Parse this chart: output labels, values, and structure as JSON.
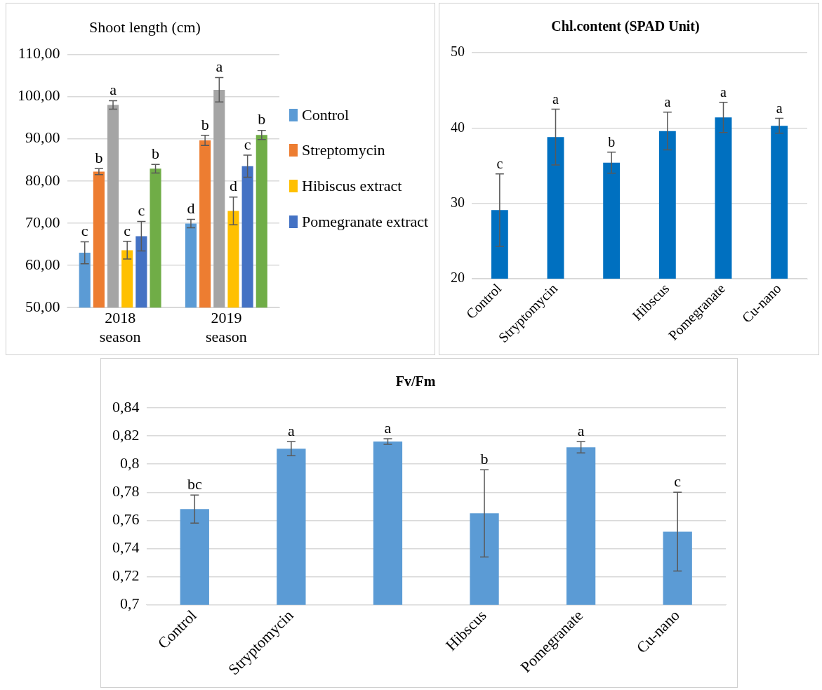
{
  "chart_data": [
    {
      "type": "bar",
      "title": "Shoot length (cm)",
      "categories": [
        "2018 season",
        "2019 season"
      ],
      "series": [
        {
          "name": "Control",
          "color": "#5b9bd5",
          "values": [
            63.0,
            69.9
          ],
          "errors": [
            2.6,
            1.0
          ],
          "value_labels": [
            "c",
            "d"
          ]
        },
        {
          "name": "Streptomycin",
          "color": "#ed7d31",
          "values": [
            82.2,
            89.6
          ],
          "errors": [
            0.7,
            1.2
          ],
          "value_labels": [
            "b",
            "b"
          ]
        },
        {
          "color": "#a5a5a5",
          "values": [
            98.0,
            101.6
          ],
          "errors": [
            1.0,
            2.9
          ],
          "value_labels": [
            "a",
            "a"
          ]
        },
        {
          "name": "Hibiscus extract",
          "color": "#ffc000",
          "values": [
            63.6,
            72.9
          ],
          "errors": [
            2.1,
            3.3
          ],
          "value_labels": [
            "c",
            "d"
          ]
        },
        {
          "name": "Pomegranate extract",
          "color": "#4472c4",
          "values": [
            66.9,
            83.5
          ],
          "errors": [
            3.5,
            2.6
          ],
          "value_labels": [
            "c",
            "c"
          ]
        },
        {
          "color": "#70ad47",
          "values": [
            82.9,
            90.9
          ],
          "errors": [
            1.0,
            1.1
          ],
          "value_labels": [
            "b",
            "b"
          ]
        }
      ],
      "ylim": [
        50,
        110
      ],
      "yticks": [
        {
          "value": 50,
          "label": "50,00"
        },
        {
          "value": 60,
          "label": "60,00"
        },
        {
          "value": 70,
          "label": "70,00"
        },
        {
          "value": 80,
          "label": "80,00"
        },
        {
          "value": 90,
          "label": "90,00"
        },
        {
          "value": 100,
          "label": "100,00"
        },
        {
          "value": 110,
          "label": "110,00"
        }
      ],
      "grid": "y",
      "legend": "right"
    },
    {
      "type": "bar",
      "title": "Chl.content (SPAD Unit)",
      "categories": [
        "Control",
        "Stryptomycin",
        null,
        "Hibscus",
        "Pomegranate",
        "Cu-nano"
      ],
      "series": [
        {
          "color": "#0070c0",
          "values": [
            29.1,
            38.8,
            35.4,
            39.6,
            41.4,
            40.3
          ],
          "errors": [
            4.8,
            3.7,
            1.4,
            2.5,
            2.0,
            1.0
          ],
          "value_labels": [
            "c",
            "a",
            "b",
            "a",
            "a",
            "a"
          ]
        }
      ],
      "ylim": [
        20,
        50
      ],
      "yticks": [
        20,
        30,
        40,
        50
      ],
      "grid": "y",
      "legend": false
    },
    {
      "type": "bar",
      "title": "Fv/Fm",
      "categories": [
        "Control",
        "Stryptomycin",
        null,
        "Hibscus",
        "Pomegranate",
        "Cu-nano"
      ],
      "series": [
        {
          "color": "#5b9bd5",
          "values": [
            0.768,
            0.811,
            0.816,
            0.765,
            0.812,
            0.752
          ],
          "errors": [
            0.01,
            0.005,
            0.002,
            0.031,
            0.004,
            0.028
          ],
          "value_labels": [
            "bc",
            "a",
            "a",
            "b",
            "a",
            "c"
          ]
        }
      ],
      "ylim": [
        0.7,
        0.84
      ],
      "yticks": [
        {
          "value": 0.7,
          "label": "0,7"
        },
        {
          "value": 0.72,
          "label": "0,72"
        },
        {
          "value": 0.74,
          "label": "0,74"
        },
        {
          "value": 0.76,
          "label": "0,76"
        },
        {
          "value": 0.78,
          "label": "0,78"
        },
        {
          "value": 0.8,
          "label": "0,8"
        },
        {
          "value": 0.82,
          "label": "0,82"
        },
        {
          "value": 0.84,
          "label": "0,84"
        }
      ],
      "grid": "y",
      "legend": false
    }
  ]
}
